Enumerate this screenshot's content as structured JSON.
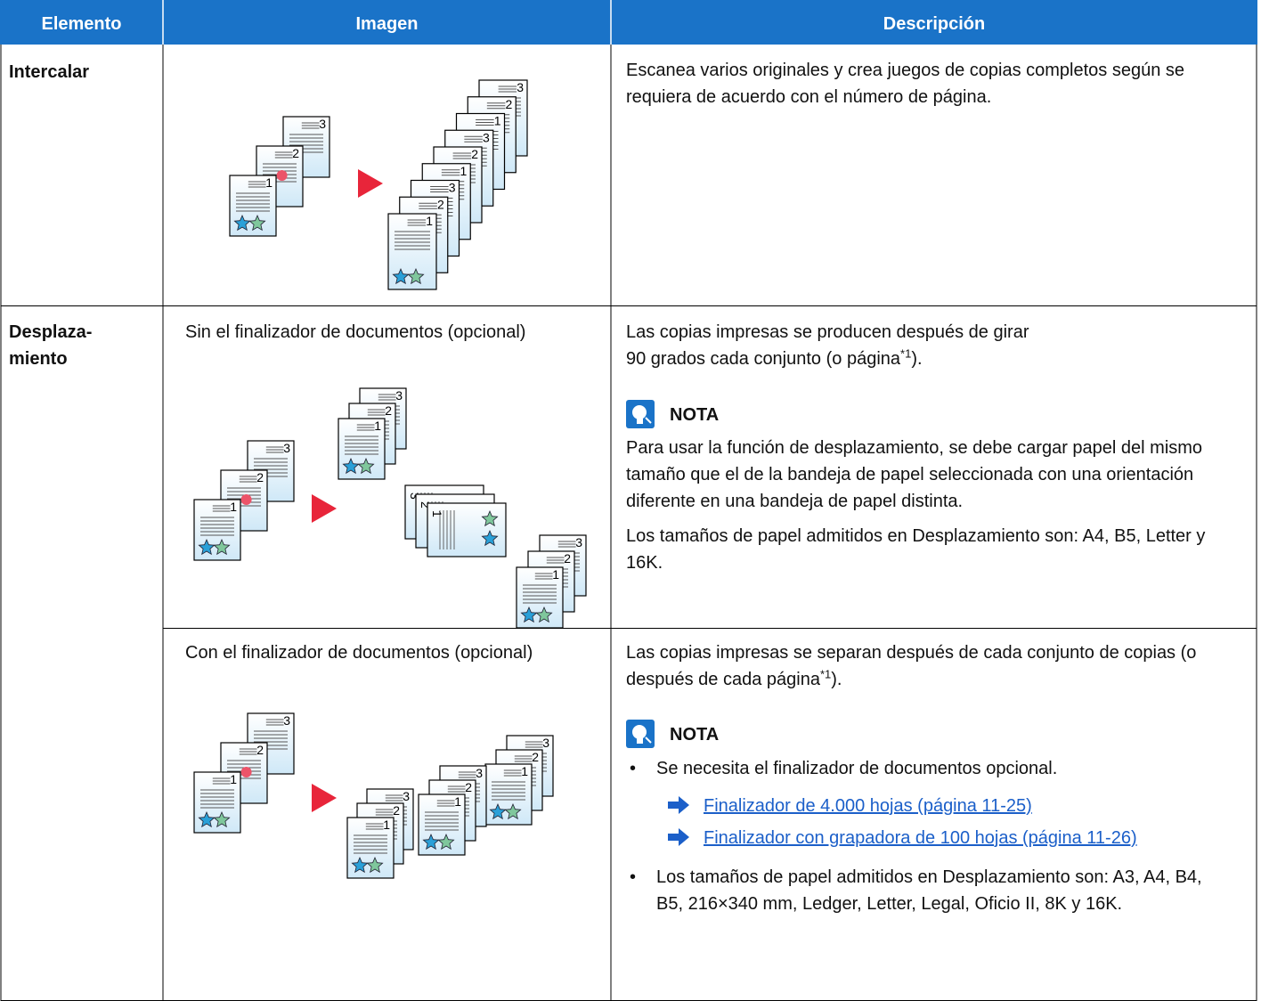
{
  "table": {
    "headers": [
      "Elemento",
      "Imagen",
      "Descripción"
    ],
    "rows": [
      {
        "element": "Intercalar",
        "description": "Escanea varios originales y crea juegos de copias completos según se requiera de acuerdo con el número de página."
      },
      {
        "element": "Desplaza-\nmiento",
        "subrows": [
          {
            "image_caption": "Sin el finalizador de documentos (opcional)",
            "description": {
              "before": "Las copias impresas se producen después de girar\n90 grados cada conjunto (o página",
              "footnote": "*1",
              "after": ")."
            },
            "note_heading": "NOTA",
            "note_paragraphs": [
              "Para usar la función de desplazamiento, se debe cargar papel del mismo tamaño que el de la bandeja de papel seleccionada con una orientación diferente en una bandeja de papel distinta.",
              "Los tamaños de papel admitidos en Desplazamiento son: A4, B5, Letter y 16K."
            ]
          },
          {
            "image_caption": "Con el finalizador de documentos (opcional)",
            "description": {
              "before": "Las copias impresas se separan después de cada conjunto de copias (o después de cada página",
              "footnote": "*1",
              "after": ")."
            },
            "note_heading": "NOTA",
            "note_bullets": [
              "Se necesita el finalizador de documentos opcional.",
              "Los tamaños de papel admitidos en Desplazamiento son: A3, A4, B4, B5, 216×340  mm, Ledger, Letter, Legal, Oficio  II, 8K y 16K."
            ],
            "note_links": [
              "Finalizador de 4.000 hojas (página 11-25)",
              "Finalizador con grapadora de 100 hojas (página 11-26)"
            ]
          }
        ]
      }
    ]
  },
  "illustration": {
    "page_numbers": [
      "1",
      "2",
      "3"
    ]
  }
}
